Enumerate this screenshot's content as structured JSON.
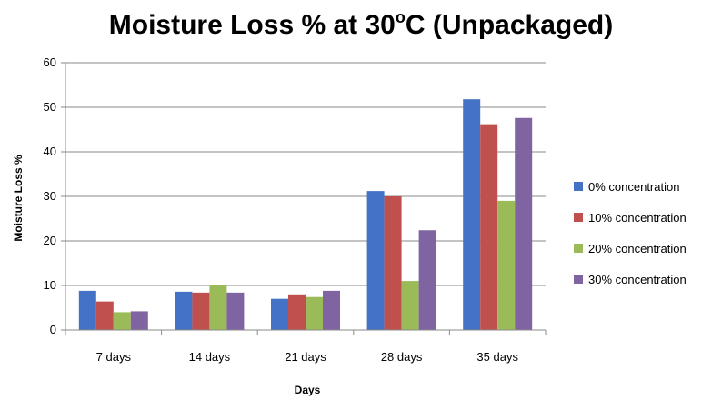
{
  "chart_data": {
    "type": "bar",
    "title": {
      "main": "Moisture Loss % at 30",
      "superscript": "o",
      "tail": "C (Unpackaged)"
    },
    "xlabel": "Days",
    "ylabel": "Moisture Loss %",
    "categories": [
      "7 days",
      "14 days",
      "21 days",
      "28 days",
      "35 days"
    ],
    "ylim": [
      0,
      60
    ],
    "yticks": [
      0,
      10,
      20,
      30,
      40,
      50,
      60
    ],
    "grid": true,
    "legend_position": "right",
    "series": [
      {
        "name": "0% concentration",
        "color": "#4472C4",
        "values": [
          8.8,
          8.6,
          7.0,
          31.2,
          51.8
        ]
      },
      {
        "name": "10% concentration",
        "color": "#C0504D",
        "values": [
          6.4,
          8.4,
          8.0,
          30.0,
          46.2
        ]
      },
      {
        "name": "20% concentration",
        "color": "#9BBB59",
        "values": [
          4.0,
          10.0,
          7.4,
          11.0,
          29.0
        ]
      },
      {
        "name": "30% concentration",
        "color": "#8064A2",
        "values": [
          4.2,
          8.4,
          8.8,
          22.4,
          47.6
        ]
      }
    ]
  }
}
